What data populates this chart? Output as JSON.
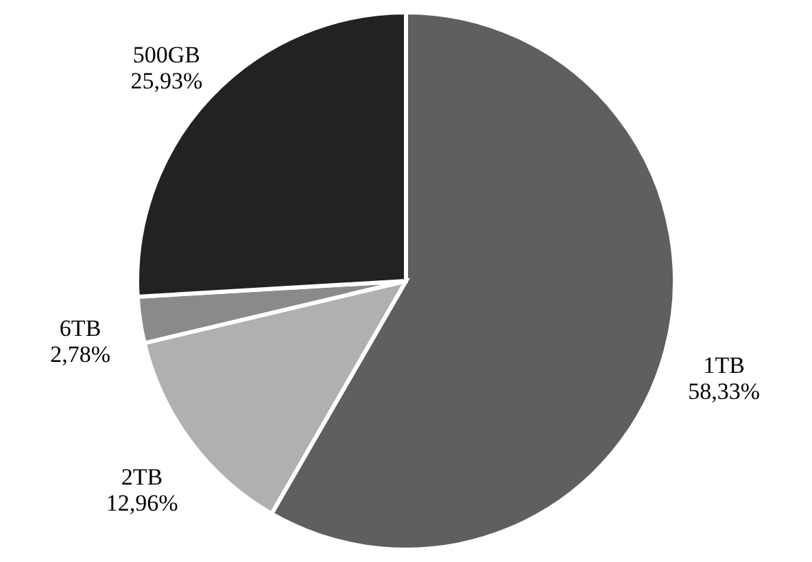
{
  "chart_data": {
    "type": "pie",
    "categories": [
      "1TB",
      "2TB",
      "6TB",
      "500GB"
    ],
    "values": [
      58.33,
      12.96,
      2.78,
      25.93
    ],
    "colors": [
      "#5f5f5f",
      "#b0b0b0",
      "#8a8a8a",
      "#222222"
    ],
    "value_labels": [
      "58,33%",
      "12,96%",
      "2,78%",
      "25,93%"
    ],
    "legend": false
  }
}
